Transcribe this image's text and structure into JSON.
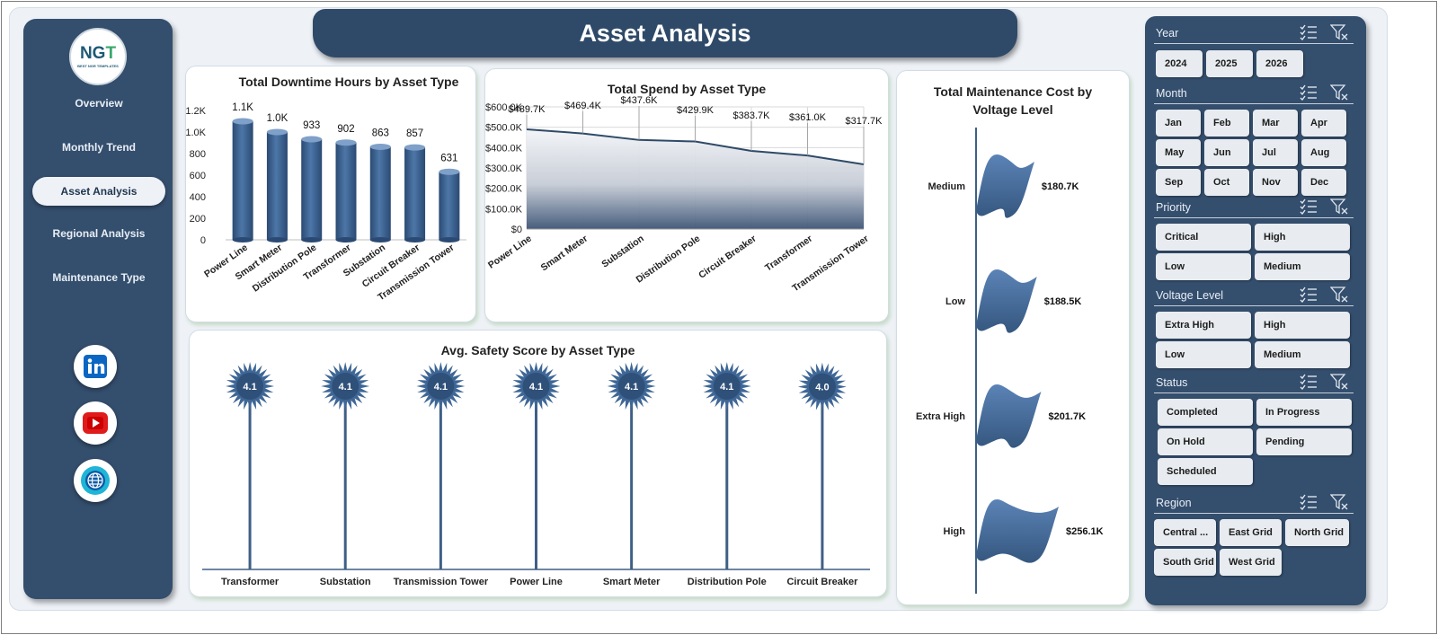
{
  "app": {
    "title": "Asset Analysis"
  },
  "logo": {
    "mark_left": "NG",
    "mark_right": "T",
    "subtitle": "BEST NGR TEMPLATES"
  },
  "sidebar": {
    "items": [
      {
        "label": "Overview",
        "active": false
      },
      {
        "label": "Monthly Trend",
        "active": false
      },
      {
        "label": "Asset Analysis",
        "active": true
      },
      {
        "label": "Regional Analysis",
        "active": false
      },
      {
        "label": "Maintenance Type",
        "active": false
      }
    ],
    "social": [
      "linkedin-icon",
      "youtube-icon",
      "globe-icon"
    ]
  },
  "colors": {
    "navy": "#344e6d",
    "bar": "#3f6796",
    "accent_green": "#96be8c",
    "line": "#2f4a68"
  },
  "chart_data": [
    {
      "type": "bar",
      "title": "Total Downtime Hours by Asset Type",
      "categories": [
        "Power Line",
        "Smart Meter",
        "Distribution Pole",
        "Transformer",
        "Substation",
        "Circuit Breaker",
        "Transmission Tower"
      ],
      "values": [
        1100,
        1000,
        933,
        902,
        863,
        857,
        631
      ],
      "data_labels": [
        "1.1K",
        "1.0K",
        "933",
        "902",
        "863",
        "857",
        "631"
      ],
      "yticks": [
        "0",
        "200",
        "400",
        "600",
        "800",
        "1.0K",
        "1.2K"
      ],
      "ylim": [
        0,
        1200
      ],
      "grid": false
    },
    {
      "type": "area",
      "title": "Total Spend by Asset Type",
      "categories": [
        "Power Line",
        "Smart Meter",
        "Substation",
        "Distribution Pole",
        "Circuit Breaker",
        "Transformer",
        "Transmission Tower"
      ],
      "values": [
        489700,
        469400,
        437600,
        429900,
        383700,
        361000,
        317700
      ],
      "data_labels": [
        "$489.7K",
        "$469.4K",
        "$437.6K",
        "$429.9K",
        "$383.7K",
        "$361.0K",
        "$317.7K"
      ],
      "yticks": [
        "$0",
        "$100.0K",
        "$200.0K",
        "$300.0K",
        "$400.0K",
        "$500.0K",
        "$600.0K"
      ],
      "ylim": [
        0,
        600000
      ],
      "grid": true
    },
    {
      "type": "bar",
      "orientation": "horizontal",
      "title": "Total Maintenance Cost by Voltage Level",
      "categories": [
        "Medium",
        "Low",
        "Extra High",
        "High"
      ],
      "values": [
        180700,
        188500,
        201700,
        256100
      ],
      "data_labels": [
        "$180.7K",
        "$188.5K",
        "$201.7K",
        "$256.1K"
      ]
    },
    {
      "type": "bar",
      "style": "lollipop",
      "title": "Avg. Safety Score by Asset Type",
      "categories": [
        "Transformer",
        "Substation",
        "Transmission Tower",
        "Power Line",
        "Smart Meter",
        "Distribution Pole",
        "Circuit Breaker"
      ],
      "values": [
        4.1,
        4.1,
        4.1,
        4.1,
        4.1,
        4.1,
        4.0
      ],
      "data_labels": [
        "4.1",
        "4.1",
        "4.1",
        "4.1",
        "4.1",
        "4.1",
        "4.0"
      ]
    }
  ],
  "filters": {
    "year": {
      "title": "Year",
      "options": [
        "2024",
        "2025",
        "2026"
      ]
    },
    "month": {
      "title": "Month",
      "options": [
        "Jan",
        "Feb",
        "Mar",
        "Apr",
        "May",
        "Jun",
        "Jul",
        "Aug",
        "Sep",
        "Oct",
        "Nov",
        "Dec"
      ]
    },
    "priority": {
      "title": "Priority",
      "options": [
        "Critical",
        "High",
        "Low",
        "Medium"
      ]
    },
    "voltage": {
      "title": "Voltage Level",
      "options": [
        "Extra High",
        "High",
        "Low",
        "Medium"
      ]
    },
    "status": {
      "title": "Status",
      "options": [
        "Completed",
        "In Progress",
        "On Hold",
        "Pending",
        "Scheduled"
      ]
    },
    "region": {
      "title": "Region",
      "options": [
        "Central ...",
        "East Grid",
        "North Grid",
        "South Grid",
        "West Grid"
      ]
    },
    "icons": [
      "multi-select-icon",
      "clear-filter-icon"
    ]
  }
}
